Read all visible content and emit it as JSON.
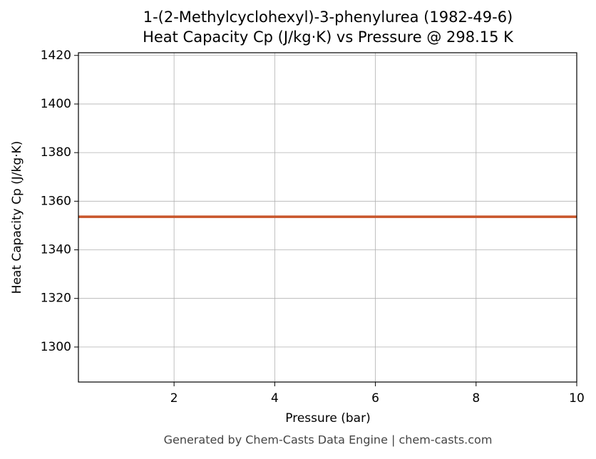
{
  "chart_data": {
    "type": "line",
    "title": "1-(2-Methylcyclohexyl)-3-phenylurea (1982-49-6)",
    "subtitle": "Heat Capacity Cp (J/kg·K) vs Pressure @ 298.15 K",
    "x_label": "Pressure (bar)",
    "y_label": "Heat Capacity Cp (J/kg·K)",
    "footer": "Generated by Chem-Casts Data Engine | chem-casts.com",
    "x": [
      0.1,
      10
    ],
    "series": [
      {
        "name": "Cp",
        "color": "#c8552a",
        "values": [
          1353.6,
          1353.6
        ]
      }
    ],
    "xlim": [
      0.1,
      10
    ],
    "xticks": [
      2,
      4,
      6,
      8,
      10
    ],
    "ylim": [
      1285.6,
      1421.1
    ],
    "yticks": [
      1300,
      1320,
      1340,
      1360,
      1380,
      1400,
      1420
    ],
    "grid": true
  }
}
